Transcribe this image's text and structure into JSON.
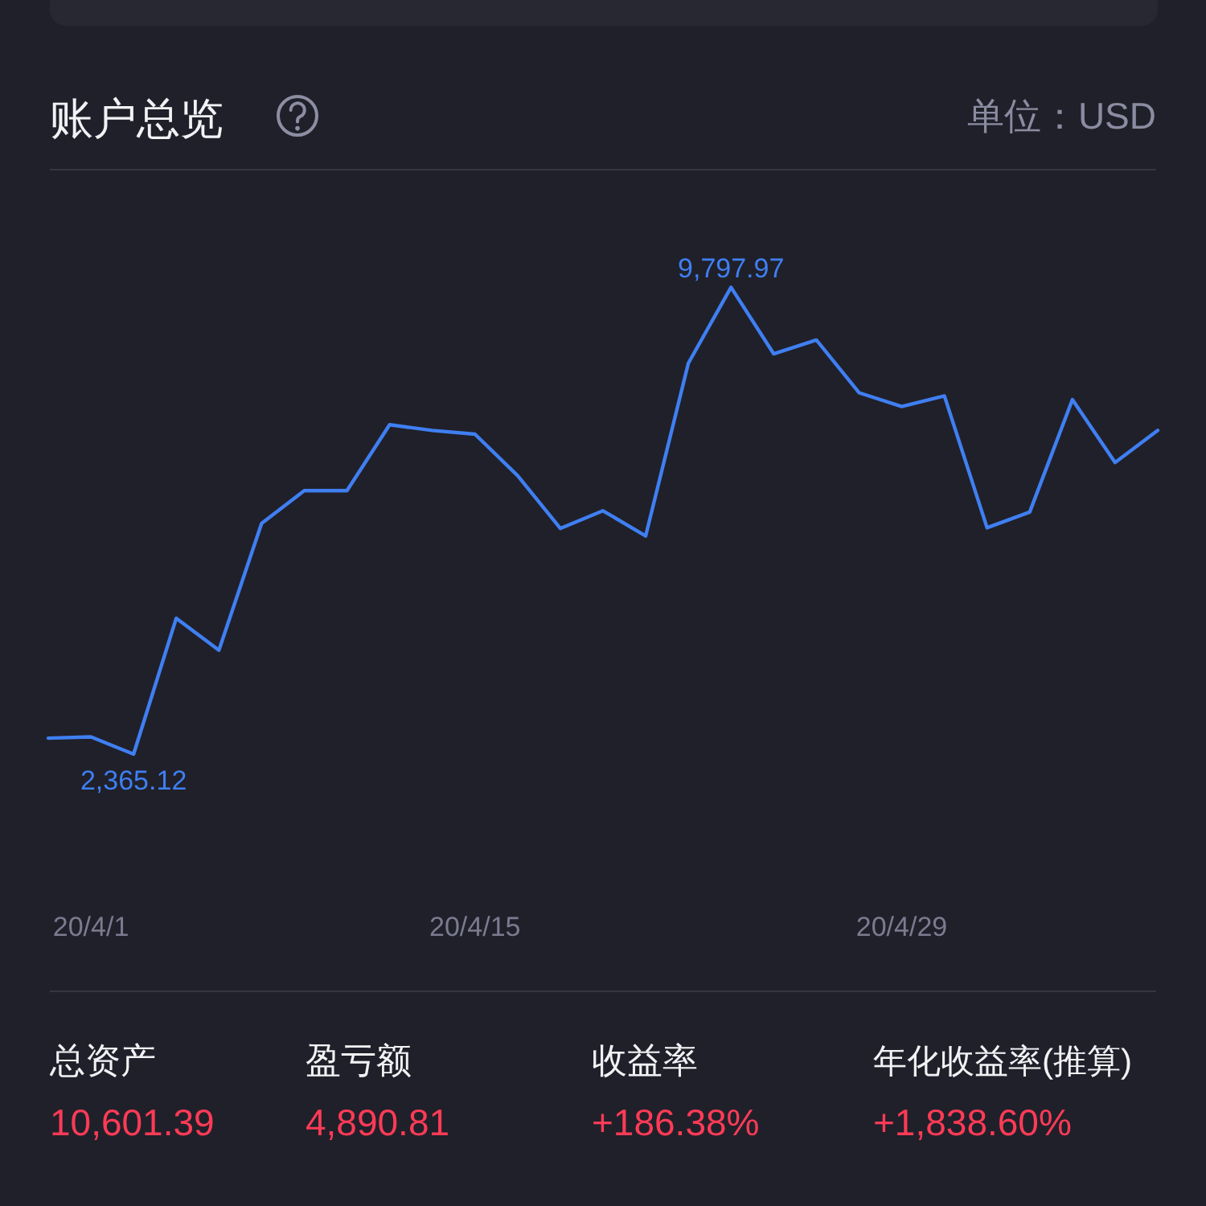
{
  "chart_data": {
    "type": "line",
    "title": "账户总览",
    "categories": [
      null,
      "20/4/1",
      null,
      null,
      null,
      null,
      null,
      null,
      null,
      null,
      "20/4/15",
      null,
      null,
      null,
      null,
      null,
      null,
      null,
      null,
      null,
      "20/4/29",
      null,
      null,
      null,
      null,
      null,
      null
    ],
    "values": [
      2620,
      2640,
      2365.12,
      4530,
      4020,
      6040,
      6560,
      6560,
      7610,
      7520,
      7460,
      6800,
      5960,
      6240,
      5840,
      8590,
      9797.97,
      8740,
      8960,
      8120,
      7900,
      8070,
      5970,
      6220,
      8010,
      7010,
      7520
    ],
    "value_labels": [
      null,
      null,
      "2,365.12",
      null,
      null,
      null,
      null,
      null,
      null,
      null,
      null,
      null,
      null,
      null,
      null,
      null,
      "9,797.97",
      null,
      null,
      null,
      null,
      null,
      null,
      null,
      null,
      null,
      null
    ],
    "color": "#3f7ff2",
    "annotations": [
      "单位：USD",
      "总资产",
      "10,601.39",
      "盈亏额",
      "4,890.81",
      "收益率",
      "+186.38%",
      "年化收益率(推算)",
      "+1,838.60%"
    ]
  }
}
